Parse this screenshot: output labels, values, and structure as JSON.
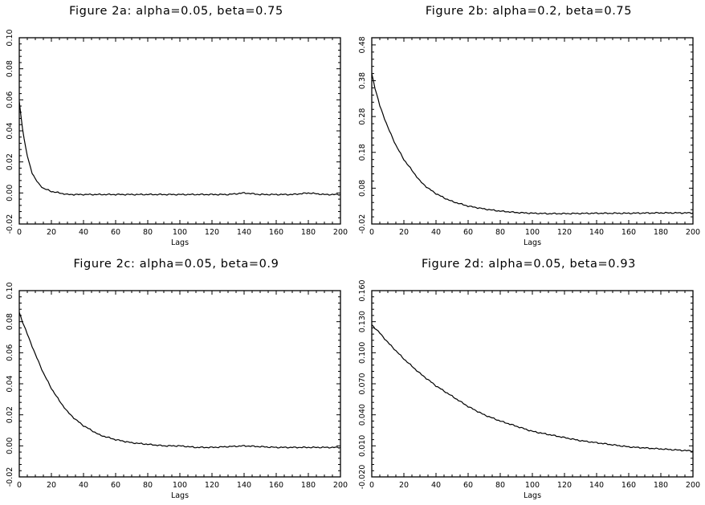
{
  "chart_data": [
    {
      "type": "line",
      "title": "Figure 2a: alpha=0.05, beta=0.75",
      "xlabel": "Lags",
      "ylabel": "",
      "xlim": [
        0,
        200
      ],
      "ylim": [
        -0.02,
        0.1
      ],
      "xticks": [
        0,
        20,
        40,
        60,
        80,
        100,
        120,
        140,
        160,
        180,
        200
      ],
      "yticks": [
        -0.02,
        0.0,
        0.02,
        0.04,
        0.06,
        0.08,
        0.1
      ],
      "ytick_labels": [
        "-0.02",
        "0.00",
        "0.02",
        "0.04",
        "0.06",
        "0.08",
        "0.10"
      ],
      "grid": false,
      "series": [
        {
          "x": [
            0,
            1,
            2,
            3,
            4,
            5,
            6,
            8,
            10,
            12,
            15,
            20,
            25,
            30,
            40,
            50,
            60,
            70,
            80,
            90,
            100,
            110,
            120,
            130,
            140,
            150,
            160,
            170,
            180,
            190,
            200
          ],
          "y": [
            0.059,
            0.05,
            0.042,
            0.035,
            0.029,
            0.024,
            0.02,
            0.013,
            0.009,
            0.006,
            0.003,
            0.001,
            0.0,
            -0.001,
            -0.001,
            -0.001,
            -0.001,
            -0.001,
            -0.001,
            -0.001,
            -0.001,
            -0.001,
            -0.001,
            -0.001,
            0.0,
            -0.001,
            -0.001,
            -0.001,
            0.0,
            -0.001,
            -0.001
          ]
        }
      ]
    },
    {
      "type": "line",
      "title": "Figure 2b: alpha=0.2, beta=0.75",
      "xlabel": "Lags",
      "ylabel": "",
      "xlim": [
        0,
        200
      ],
      "ylim": [
        -0.02,
        0.5
      ],
      "xticks": [
        0,
        20,
        40,
        60,
        80,
        100,
        120,
        140,
        160,
        180,
        200
      ],
      "yticks": [
        -0.02,
        0.08,
        0.18,
        0.28,
        0.38,
        0.48
      ],
      "ytick_labels": [
        "-0.02",
        "0.08",
        "0.18",
        "0.28",
        "0.38",
        "0.48"
      ],
      "grid": false,
      "series": [
        {
          "x": [
            0,
            2,
            5,
            10,
            15,
            20,
            25,
            30,
            35,
            40,
            45,
            50,
            60,
            70,
            80,
            90,
            100,
            110,
            120,
            140,
            160,
            180,
            200
          ],
          "y": [
            0.4,
            0.36,
            0.31,
            0.25,
            0.2,
            0.16,
            0.13,
            0.1,
            0.08,
            0.065,
            0.053,
            0.043,
            0.03,
            0.022,
            0.016,
            0.012,
            0.01,
            0.009,
            0.009,
            0.01,
            0.01,
            0.011,
            0.011
          ]
        }
      ]
    },
    {
      "type": "line",
      "title": "Figure 2c: alpha=0.05, beta=0.9",
      "xlabel": "Lags",
      "ylabel": "",
      "xlim": [
        0,
        200
      ],
      "ylim": [
        -0.02,
        0.1
      ],
      "xticks": [
        0,
        20,
        40,
        60,
        80,
        100,
        120,
        140,
        160,
        180,
        200
      ],
      "yticks": [
        -0.02,
        0.0,
        0.02,
        0.04,
        0.06,
        0.08,
        0.1
      ],
      "ytick_labels": [
        "-0.02",
        "0.00",
        "0.02",
        "0.04",
        "0.06",
        "0.08",
        "0.10"
      ],
      "grid": false,
      "series": [
        {
          "x": [
            0,
            2,
            5,
            10,
            15,
            20,
            25,
            30,
            35,
            40,
            50,
            60,
            70,
            80,
            90,
            100,
            110,
            120,
            140,
            160,
            180,
            200
          ],
          "y": [
            0.086,
            0.08,
            0.072,
            0.059,
            0.047,
            0.037,
            0.029,
            0.022,
            0.017,
            0.013,
            0.007,
            0.004,
            0.002,
            0.001,
            0.0,
            0.0,
            -0.001,
            -0.001,
            0.0,
            -0.001,
            -0.001,
            -0.001
          ]
        }
      ]
    },
    {
      "type": "line",
      "title": "Figure 2d: alpha=0.05, beta=0.93",
      "xlabel": "Lags",
      "ylabel": "",
      "xlim": [
        0,
        200
      ],
      "ylim": [
        -0.02,
        0.16
      ],
      "xticks": [
        0,
        20,
        40,
        60,
        80,
        100,
        120,
        140,
        160,
        180,
        200
      ],
      "yticks": [
        -0.02,
        0.01,
        0.04,
        0.07,
        0.1,
        0.13,
        0.16
      ],
      "ytick_labels": [
        "-0.020",
        "0.010",
        "0.040",
        "0.070",
        "0.100",
        "0.130",
        "0.160"
      ],
      "grid": false,
      "series": [
        {
          "x": [
            0,
            5,
            10,
            20,
            30,
            40,
            50,
            60,
            70,
            80,
            90,
            100,
            110,
            120,
            130,
            140,
            150,
            160,
            170,
            180,
            190,
            200
          ],
          "y": [
            0.127,
            0.119,
            0.11,
            0.094,
            0.08,
            0.068,
            0.058,
            0.048,
            0.04,
            0.034,
            0.029,
            0.024,
            0.021,
            0.018,
            0.015,
            0.013,
            0.011,
            0.009,
            0.008,
            0.007,
            0.006,
            0.005
          ]
        }
      ]
    }
  ]
}
